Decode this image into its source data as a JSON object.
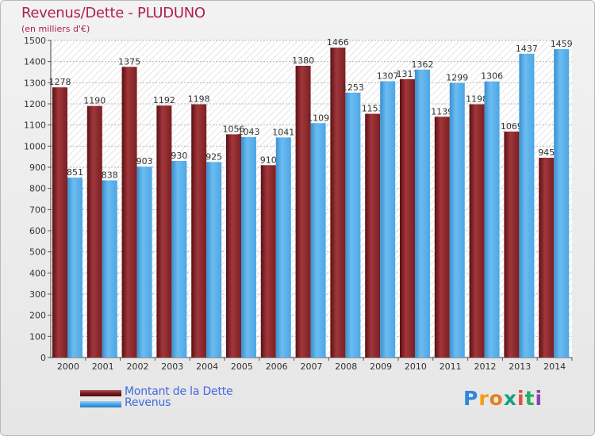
{
  "header": {
    "title": "Revenus/Dette - PLUDUNO",
    "subtitle": "(en milliers d'€)"
  },
  "chart_data": {
    "type": "bar",
    "title": "Revenus/Dette - PLUDUNO",
    "ylabel": "(en milliers d'€)",
    "xlabel": "",
    "categories": [
      "2000",
      "2001",
      "2002",
      "2003",
      "2004",
      "2005",
      "2006",
      "2007",
      "2008",
      "2009",
      "2010",
      "2011",
      "2012",
      "2013",
      "2014"
    ],
    "series": [
      {
        "name": "Montant de la Dette",
        "color": "#7b1f22",
        "values": [
          1278,
          1190,
          1375,
          1192,
          1198,
          1056,
          910,
          1380,
          1466,
          1153,
          1317,
          1139,
          1198,
          1069,
          945
        ]
      },
      {
        "name": "Revenus",
        "color": "#4da6e6",
        "values": [
          851,
          838,
          903,
          930,
          925,
          1043,
          1041,
          1109,
          1253,
          1307,
          1362,
          1299,
          1306,
          1437,
          1459
        ]
      }
    ],
    "ylim": [
      0,
      1500
    ],
    "ytick_step": 100,
    "grid": true,
    "legend": "bottom-left"
  },
  "legend": {
    "items": [
      {
        "label": "Montant de la Dette",
        "color": "#7b1f22"
      },
      {
        "label": "Revenus",
        "color": "#4da6e6"
      }
    ]
  },
  "brand": {
    "letters": [
      "P",
      "r",
      "o",
      "x",
      "i",
      "t",
      "i"
    ],
    "colors": [
      "#2e86de",
      "#f39c12",
      "#e67e22",
      "#16a085",
      "#e74c3c",
      "#27ae60",
      "#8e44ad"
    ]
  }
}
